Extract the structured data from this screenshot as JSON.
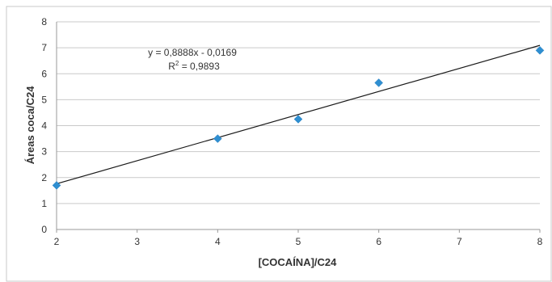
{
  "chart_data": {
    "type": "scatter",
    "title": "",
    "xlabel": "[COCAÍNA]/C24",
    "ylabel": "Áreas coca/C24",
    "xlim": [
      2,
      8
    ],
    "ylim": [
      0,
      8
    ],
    "x_ticks": [
      "2",
      "3",
      "4",
      "5",
      "6",
      "7",
      "8"
    ],
    "y_ticks": [
      "0",
      "1",
      "2",
      "3",
      "4",
      "5",
      "6",
      "7",
      "8"
    ],
    "grid": "horizontal",
    "series": [
      {
        "x": [
          2,
          4,
          5,
          6,
          8
        ],
        "y": [
          1.7,
          3.5,
          4.25,
          5.65,
          6.9
        ],
        "marker": "diamond",
        "color": "#2f8fd1"
      }
    ],
    "trendline": {
      "slope": 0.8888,
      "intercept": -0.0169,
      "color": "#1a1a1a",
      "equation": "y = 0,8888x - 0,0169",
      "r_squared_prefix": "R",
      "r_squared_sup": "2",
      "r_squared_value": " = 0,9893"
    }
  }
}
